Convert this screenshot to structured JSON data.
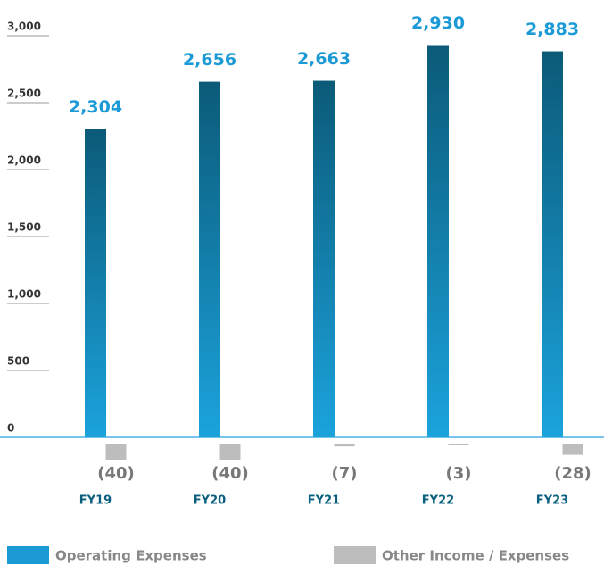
{
  "chart_data": {
    "type": "bar",
    "categories": [
      "FY19",
      "FY20",
      "FY21",
      "FY22",
      "FY23"
    ],
    "series": [
      {
        "name": "Operating Expenses",
        "color": "#1b9ad6",
        "values": [
          2304,
          2656,
          2663,
          2930,
          2883
        ],
        "value_labels": [
          "2,304",
          "2,656",
          "2,663",
          "2,930",
          "2,883"
        ]
      },
      {
        "name": "Other Income / Expenses",
        "color": "#bdbdbd",
        "axis": "y2",
        "values": [
          -40,
          -40,
          -7,
          -3,
          -28
        ],
        "value_labels": [
          "(40)",
          "(40)",
          "(7)",
          "(3)",
          "(28)"
        ]
      }
    ],
    "ylim": [
      0,
      3000
    ],
    "yticks": [
      0,
      500,
      {
        "value": 1000,
        "label": "1,000"
      },
      {
        "value": 1500,
        "label": "1,500"
      },
      {
        "value": 2000,
        "label": "2,000"
      },
      {
        "value": 2500,
        "label": "2,500"
      },
      {
        "value": 3000,
        "label": "3,000"
      }
    ],
    "y2lim": [
      -40,
      0
    ]
  }
}
